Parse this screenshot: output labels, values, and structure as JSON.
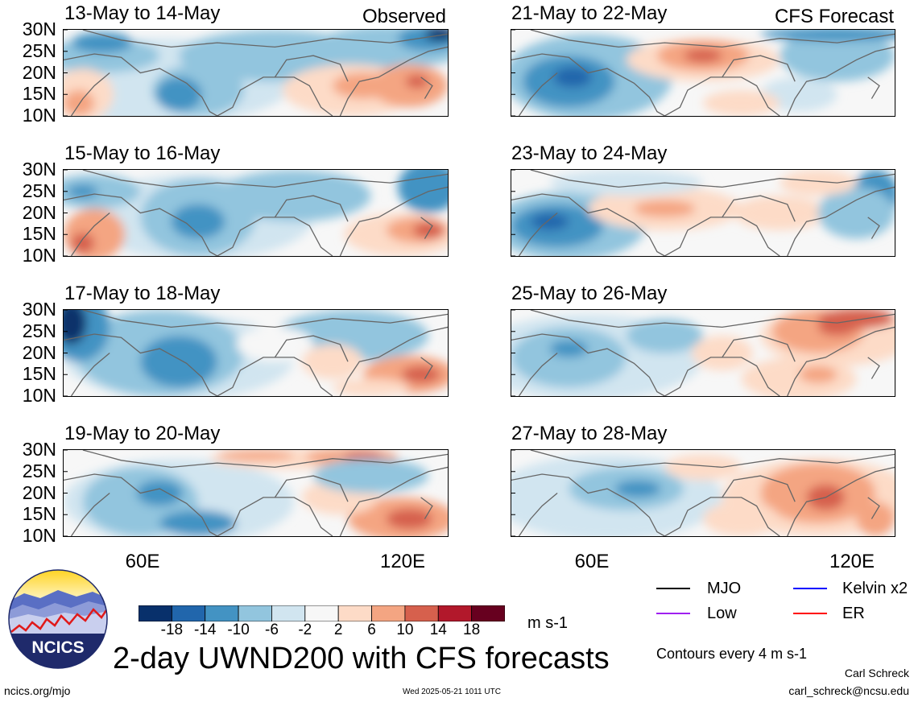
{
  "panels": [
    {
      "title": "13-May to 14-May",
      "label": "Observed",
      "pattern": "obs1"
    },
    {
      "title": "15-May to 16-May",
      "label": "",
      "pattern": "obs2"
    },
    {
      "title": "17-May to 18-May",
      "label": "",
      "pattern": "obs3"
    },
    {
      "title": "19-May to 20-May",
      "label": "",
      "pattern": "obs4"
    },
    {
      "title": "21-May to 22-May",
      "label": "CFS Forecast",
      "pattern": "fc1"
    },
    {
      "title": "23-May to 24-May",
      "label": "",
      "pattern": "fc2"
    },
    {
      "title": "25-May to 26-May",
      "label": "",
      "pattern": "fc3"
    },
    {
      "title": "27-May to 28-May",
      "label": "",
      "pattern": "fc4"
    }
  ],
  "lat_ticks": [
    "30N",
    "25N",
    "20N",
    "15N",
    "10N"
  ],
  "lon_ticks": [
    "60E",
    "120E"
  ],
  "colorbar": {
    "colors": [
      "#08306b",
      "#2166ac",
      "#4393c3",
      "#92c5de",
      "#d1e5f0",
      "#f7f7f7",
      "#fddbc7",
      "#f4a582",
      "#d6604d",
      "#b2182b",
      "#67001f"
    ],
    "labels": [
      "-18",
      "-14",
      "-10",
      "-6",
      "-2",
      "2",
      "6",
      "10",
      "14",
      "18"
    ],
    "units": "m s-1"
  },
  "legend": {
    "items": [
      {
        "label": "MJO",
        "color": "#000000"
      },
      {
        "label": "Kelvin x2",
        "color": "#0000ff"
      },
      {
        "label": "Low",
        "color": "#a020f0"
      },
      {
        "label": "ER",
        "color": "#ff0000"
      }
    ],
    "contours_note": "Contours every 4 m s-1"
  },
  "logo": {
    "text": "NCICS"
  },
  "main_title": "2-day UWND200 with CFS forecasts",
  "footer": {
    "left": "ncics.org/mjo",
    "center": "Wed 2025-05-21 1011 UTC",
    "author": "Carl Schreck",
    "email": "carl_schreck@ncsu.edu"
  }
}
